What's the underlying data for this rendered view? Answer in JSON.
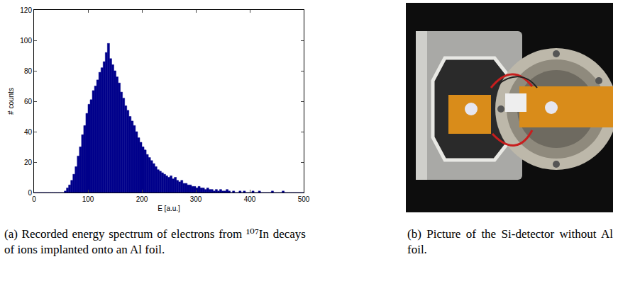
{
  "chart_data": {
    "type": "histogram",
    "bins": [
      0,
      4,
      8,
      12,
      16,
      20,
      24,
      28,
      32,
      36,
      40,
      44,
      48,
      52,
      56,
      60,
      64,
      68,
      72,
      76,
      80,
      84,
      88,
      92,
      96,
      100,
      104,
      108,
      112,
      116,
      120,
      124,
      128,
      132,
      136,
      140,
      144,
      148,
      152,
      156,
      160,
      164,
      168,
      172,
      176,
      180,
      184,
      188,
      192,
      196,
      200,
      204,
      208,
      212,
      216,
      220,
      224,
      228,
      232,
      236,
      240,
      244,
      248,
      252,
      256,
      260,
      264,
      268,
      272,
      276,
      280,
      284,
      288,
      292,
      296,
      300,
      304,
      308,
      312,
      316,
      320,
      324,
      328,
      332,
      336,
      340,
      344,
      348,
      352,
      356,
      360,
      364,
      368,
      372,
      376,
      380,
      384,
      388,
      392,
      396,
      400,
      404,
      408,
      412,
      416,
      420,
      424,
      428,
      432,
      436,
      440,
      444,
      448,
      452,
      456,
      460,
      464,
      468,
      472,
      476,
      480,
      484,
      488,
      492,
      496,
      500
    ],
    "values": [
      0,
      0,
      0,
      0,
      0,
      0,
      0,
      0,
      0,
      0,
      0,
      0,
      0,
      0,
      1,
      3,
      5,
      8,
      12,
      17,
      24,
      30,
      38,
      44,
      52,
      58,
      61,
      67,
      70,
      74,
      79,
      82,
      86,
      92,
      98,
      88,
      84,
      80,
      76,
      72,
      66,
      62,
      57,
      54,
      50,
      47,
      44,
      40,
      36,
      33,
      30,
      28,
      25,
      23,
      21,
      19,
      17,
      15,
      14,
      13,
      12,
      11,
      10,
      11,
      9,
      10,
      8,
      7,
      8,
      6,
      6,
      5,
      5,
      4,
      4,
      3,
      4,
      3,
      3,
      2,
      3,
      2,
      2,
      1,
      2,
      1,
      2,
      1,
      1,
      2,
      1,
      0,
      1,
      0,
      0,
      1,
      0,
      1,
      0,
      0,
      0,
      1,
      0,
      0,
      1,
      0,
      0,
      0,
      0,
      0,
      1,
      0,
      0,
      0,
      0,
      1,
      0,
      0,
      0,
      0,
      0,
      0,
      0,
      0,
      0
    ],
    "color": "#00008b",
    "x_label": "E [a.u.]",
    "y_label": "# counts",
    "xlim": [
      0,
      500
    ],
    "ylim": [
      0,
      120
    ],
    "xticks": [
      0,
      100,
      200,
      300,
      400,
      500
    ],
    "yticks": [
      0,
      20,
      40,
      60,
      80,
      100,
      120
    ],
    "grid": false
  },
  "captions": {
    "a": "(a) Recorded energy spectrum of electrons from ¹⁰⁷In decays of ions implanted onto an Al foil.",
    "b": "(b) Picture of the Si-detector without Al foil."
  }
}
